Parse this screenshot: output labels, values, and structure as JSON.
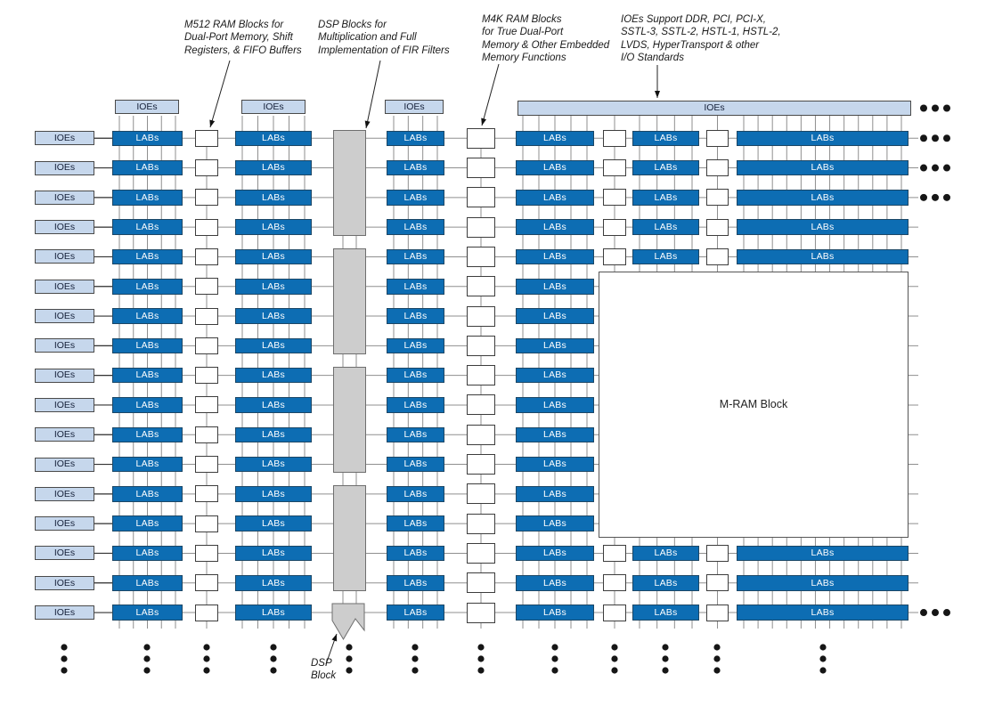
{
  "diagram": {
    "labels": {
      "ioe": "IOEs",
      "lab": "LABs",
      "mram": "M-RAM Block",
      "dsp_pointer": "DSP\nBlock"
    },
    "annotations": {
      "m512": "M512 RAM Blocks for\nDual-Port Memory, Shift\nRegisters, & FIFO Buffers",
      "dsp": "DSP Blocks for\nMultiplication and Full\nImplementation of FIR Filters",
      "m4k": "M4K RAM Blocks\nfor True Dual-Port\nMemory & Other Embedded\nMemory Functions",
      "ioe": "IOEs Support DDR, PCI, PCI-X,\nSSTL-3, SSTL-2, HSTL-1, HSTL-2,\nLVDS, HyperTransport & other\nI/O Standards"
    },
    "colors": {
      "lab_fill": "#0d6db3",
      "ioe_fill": "#c6d7ec",
      "dsp_fill": "#cdcdcd",
      "grid_line": "#8f8f8f",
      "text": "#1a1a1a",
      "dot": "#161616"
    },
    "structure": {
      "rows": 17,
      "lab_columns": 6,
      "left_ioe_column": true,
      "top_ioe_headers": 3,
      "top_ioe_bar_spans_right_half": true,
      "m512_columns": 3,
      "m4k_columns": 1,
      "dsp_column_groups": 4,
      "dsp_rows_per_group": 4,
      "mram_block_rows": "6-14",
      "rows_with_right_continuation_dots": [
        1,
        2,
        3,
        17
      ],
      "bar_right_continuation_dots": true,
      "bottom_continuation_dots_per_column": true
    }
  }
}
